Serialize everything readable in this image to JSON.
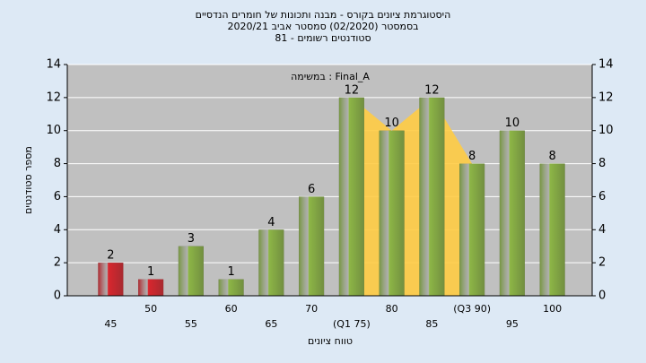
{
  "chart_data": {
    "type": "bar",
    "title": [
      "היסטוגרמת ציונים בקורס - מבנה ותכונות של חומרים הנדסיים",
      "בסמסטר  (02/2020)  סמסטר אביב 2020/21",
      "סטודנטים רשומים - 81"
    ],
    "annotation": "במשימה : Final_A",
    "y_label": "מספר סטודנטים",
    "x_label": "טווח ציונים",
    "categories": [
      "45",
      "50",
      "55",
      "60",
      "65",
      "70",
      "(Q1 75)",
      "80",
      "85",
      "(Q3 90)",
      "95",
      "100"
    ],
    "values": [
      2,
      1,
      3,
      1,
      4,
      6,
      12,
      10,
      12,
      8,
      10,
      8
    ],
    "colors": [
      "#d9262e",
      "#d9262e",
      "#8db646",
      "#8db646",
      "#8db646",
      "#8db646",
      "#8db646",
      "#8db646",
      "#8db646",
      "#8db646",
      "#8db646",
      "#8db646"
    ],
    "iqr_color": "#ffcc44",
    "ylim": [
      0,
      14
    ],
    "yticks": [
      0,
      2,
      4,
      6,
      8,
      10,
      12,
      14
    ],
    "y2lim": [
      0,
      14
    ],
    "y2ticks": [
      0,
      2,
      4,
      6,
      8,
      10,
      12,
      14
    ],
    "grid": true
  }
}
